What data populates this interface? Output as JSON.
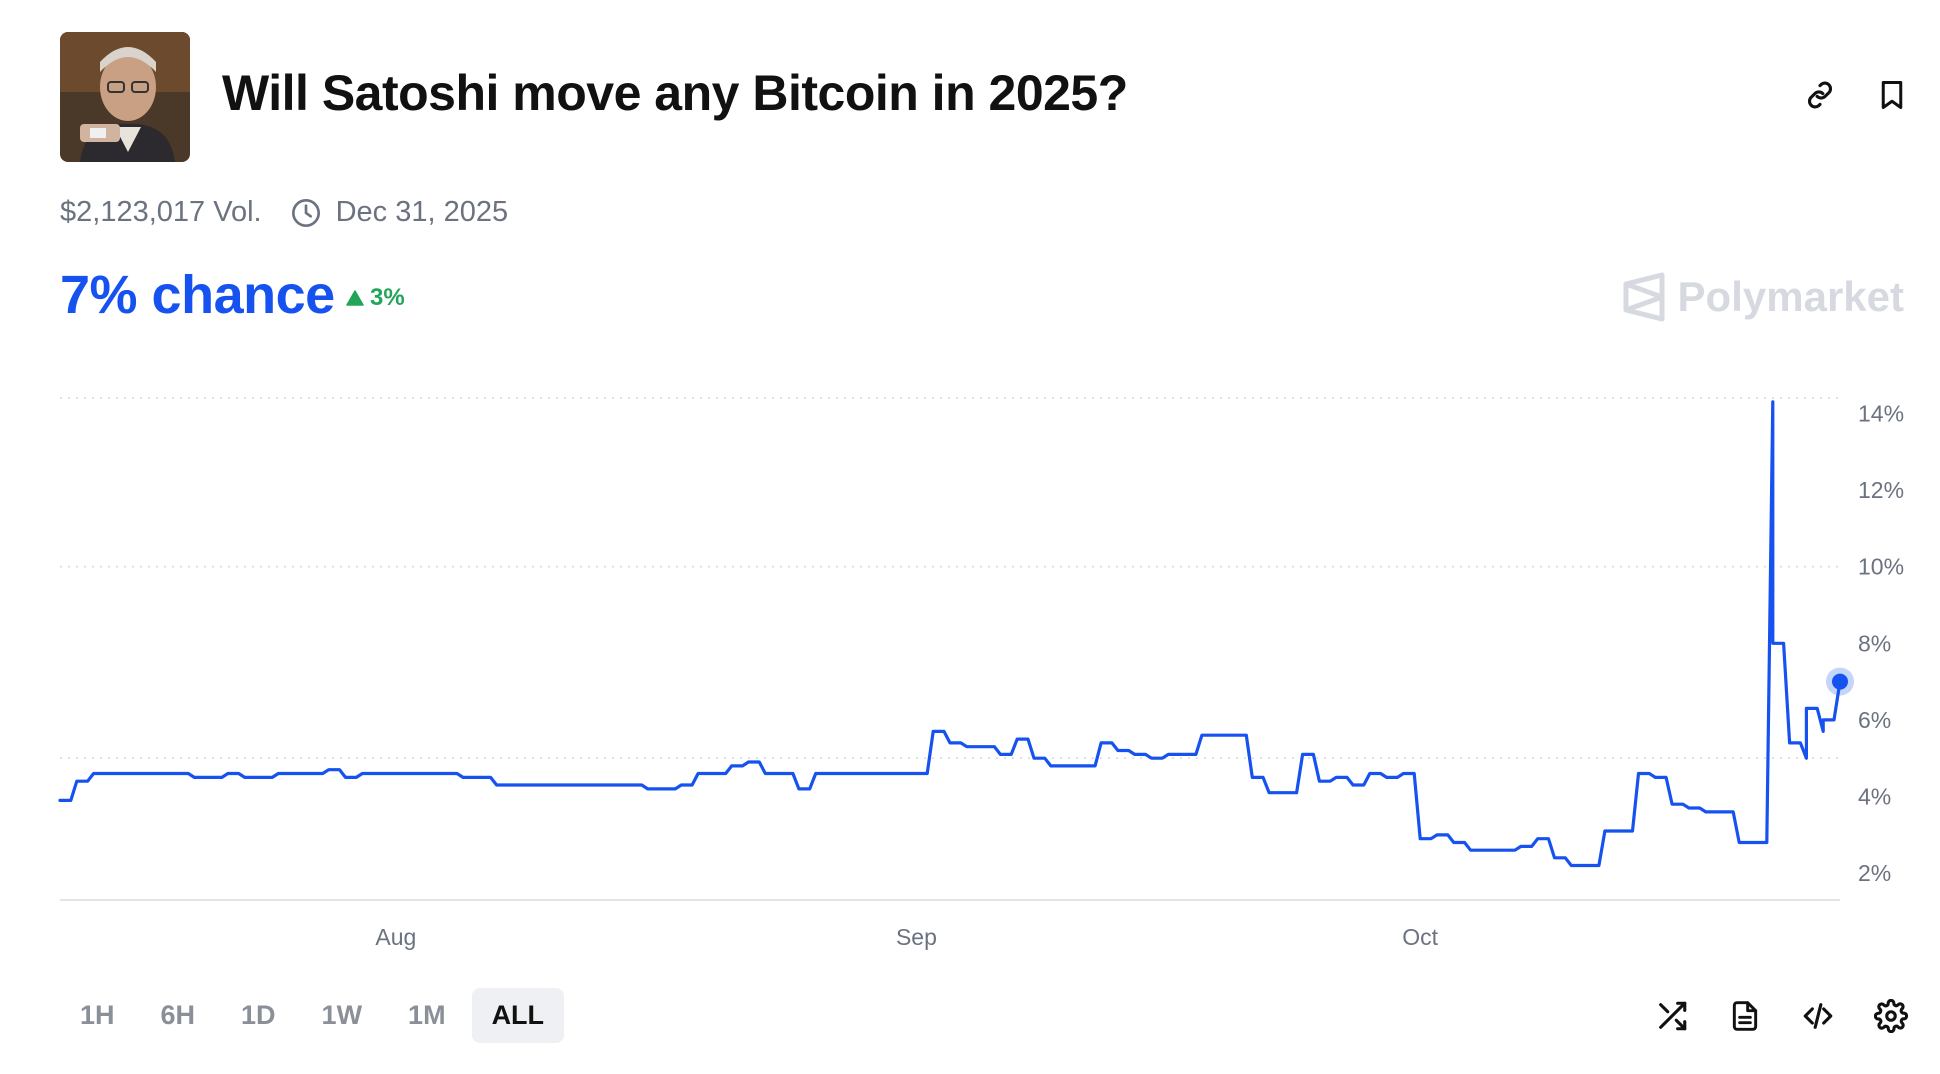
{
  "market": {
    "title": "Will Satoshi move any Bitcoin in 2025?",
    "volume": "$2,123,017 Vol.",
    "end_date": "Dec 31, 2025",
    "chance": "7% chance",
    "delta": "3%",
    "brand": "Polymarket"
  },
  "icons": {
    "header": [
      "link-icon",
      "bookmark-icon"
    ],
    "meta": "clock-icon",
    "delta": "triangle-up-icon",
    "tools": [
      "shuffle-icon",
      "document-icon",
      "code-icon",
      "gear-icon"
    ]
  },
  "colors": {
    "accent": "#1652f0",
    "positive": "#22a55a",
    "muted": "#6b7280",
    "brand_gray": "#d6dae0"
  },
  "timeframes": {
    "items": [
      "1H",
      "6H",
      "1D",
      "1W",
      "1M",
      "ALL"
    ],
    "selected": "ALL"
  },
  "chart_data": {
    "type": "line",
    "x_ticks": [
      "Aug",
      "Sep",
      "Oct"
    ],
    "y_ticks": [
      "2%",
      "4%",
      "6%",
      "8%",
      "10%",
      "12%",
      "14%"
    ],
    "ylim": [
      1.3,
      14.4
    ],
    "xlim": [
      "2025-07-12",
      "2025-10-26"
    ],
    "grid": "dotted horizontal",
    "series": [
      {
        "points": [
          [
            "2025-07-12",
            3.9
          ],
          [
            "2025-07-13",
            4.4
          ],
          [
            "2025-07-14",
            4.6
          ],
          [
            "2025-07-16",
            4.6
          ],
          [
            "2025-07-19",
            4.6
          ],
          [
            "2025-07-20",
            4.5
          ],
          [
            "2025-07-21",
            4.5
          ],
          [
            "2025-07-22",
            4.6
          ],
          [
            "2025-07-23",
            4.5
          ],
          [
            "2025-07-25",
            4.6
          ],
          [
            "2025-07-27",
            4.6
          ],
          [
            "2025-07-28",
            4.7
          ],
          [
            "2025-07-29",
            4.5
          ],
          [
            "2025-07-30",
            4.6
          ],
          [
            "2025-07-31",
            4.6
          ],
          [
            "2025-08-01",
            4.6
          ],
          [
            "2025-08-02",
            4.6
          ],
          [
            "2025-08-04",
            4.6
          ],
          [
            "2025-08-05",
            4.5
          ],
          [
            "2025-08-06",
            4.5
          ],
          [
            "2025-08-07",
            4.3
          ],
          [
            "2025-08-08",
            4.3
          ],
          [
            "2025-08-10",
            4.3
          ],
          [
            "2025-08-12",
            4.3
          ],
          [
            "2025-08-14",
            4.3
          ],
          [
            "2025-08-16",
            4.2
          ],
          [
            "2025-08-18",
            4.3
          ],
          [
            "2025-08-19",
            4.6
          ],
          [
            "2025-08-20",
            4.6
          ],
          [
            "2025-08-21",
            4.8
          ],
          [
            "2025-08-22",
            4.9
          ],
          [
            "2025-08-23",
            4.6
          ],
          [
            "2025-08-24",
            4.6
          ],
          [
            "2025-08-25",
            4.2
          ],
          [
            "2025-08-26",
            4.6
          ],
          [
            "2025-08-28",
            4.6
          ],
          [
            "2025-08-29",
            4.6
          ],
          [
            "2025-08-30",
            4.6
          ],
          [
            "2025-08-31",
            4.6
          ],
          [
            "2025-09-01",
            4.6
          ],
          [
            "2025-09-02",
            5.7
          ],
          [
            "2025-09-03",
            5.4
          ],
          [
            "2025-09-04",
            5.3
          ],
          [
            "2025-09-05",
            5.3
          ],
          [
            "2025-09-06",
            5.1
          ],
          [
            "2025-09-07",
            5.5
          ],
          [
            "2025-09-08",
            5.0
          ],
          [
            "2025-09-09",
            4.8
          ],
          [
            "2025-09-10",
            4.8
          ],
          [
            "2025-09-11",
            4.8
          ],
          [
            "2025-09-12",
            5.4
          ],
          [
            "2025-09-13",
            5.2
          ],
          [
            "2025-09-14",
            5.1
          ],
          [
            "2025-09-15",
            5.0
          ],
          [
            "2025-09-16",
            5.1
          ],
          [
            "2025-09-17",
            5.1
          ],
          [
            "2025-09-18",
            5.6
          ],
          [
            "2025-09-19",
            5.6
          ],
          [
            "2025-09-20",
            5.6
          ],
          [
            "2025-09-21",
            4.5
          ],
          [
            "2025-09-22",
            4.1
          ],
          [
            "2025-09-23",
            4.1
          ],
          [
            "2025-09-24",
            5.1
          ],
          [
            "2025-09-25",
            4.4
          ],
          [
            "2025-09-26",
            4.5
          ],
          [
            "2025-09-27",
            4.3
          ],
          [
            "2025-09-28",
            4.6
          ],
          [
            "2025-09-29",
            4.5
          ],
          [
            "2025-09-30",
            4.6
          ],
          [
            "2025-10-01",
            2.9
          ],
          [
            "2025-10-02",
            3.0
          ],
          [
            "2025-10-03",
            2.8
          ],
          [
            "2025-10-04",
            2.6
          ],
          [
            "2025-10-05",
            2.6
          ],
          [
            "2025-10-06",
            2.6
          ],
          [
            "2025-10-07",
            2.7
          ],
          [
            "2025-10-08",
            2.9
          ],
          [
            "2025-10-09",
            2.4
          ],
          [
            "2025-10-10",
            2.2
          ],
          [
            "2025-10-11",
            2.2
          ],
          [
            "2025-10-12",
            3.1
          ],
          [
            "2025-10-13",
            3.1
          ],
          [
            "2025-10-14",
            4.6
          ],
          [
            "2025-10-15",
            4.5
          ],
          [
            "2025-10-16",
            3.8
          ],
          [
            "2025-10-17",
            3.7
          ],
          [
            "2025-10-18",
            3.6
          ],
          [
            "2025-10-19",
            3.6
          ],
          [
            "2025-10-20",
            2.8
          ],
          [
            "2025-10-21",
            2.8
          ],
          [
            "2025-10-22",
            14.3
          ],
          [
            "2025-10-22",
            8.0
          ],
          [
            "2025-10-23",
            5.4
          ],
          [
            "2025-10-24",
            5.0
          ],
          [
            "2025-10-24",
            6.3
          ],
          [
            "2025-10-25",
            5.7
          ],
          [
            "2025-10-25",
            6.0
          ],
          [
            "2025-10-26",
            7.0
          ]
        ]
      }
    ]
  }
}
